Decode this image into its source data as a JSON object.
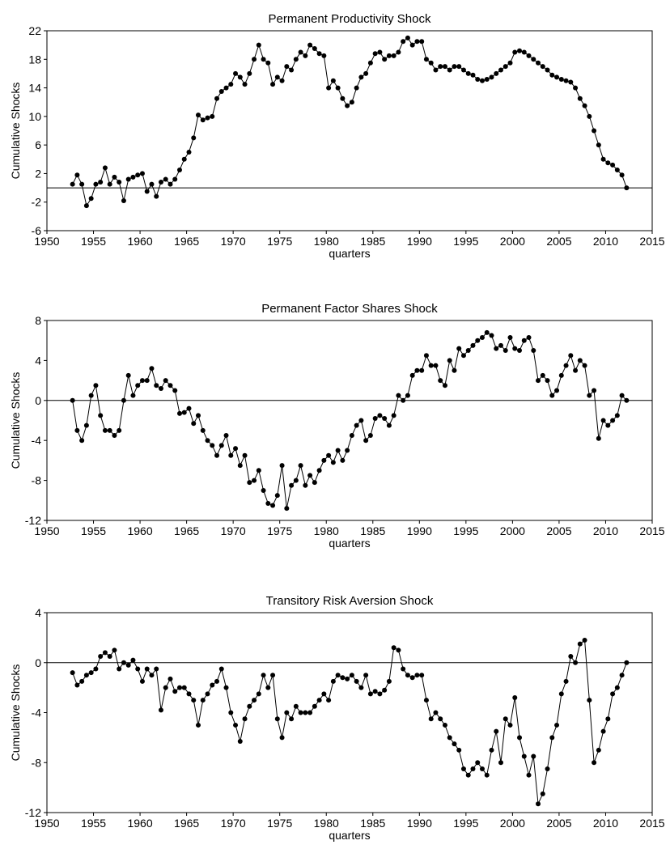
{
  "chart_data": [
    {
      "type": "line",
      "title": "Permanent Productivity Shock",
      "xlabel": "quarters",
      "ylabel": "Cumulative Shocks",
      "xlim": [
        1950,
        2015
      ],
      "xticks": [
        1950,
        1955,
        1960,
        1965,
        1970,
        1975,
        1980,
        1985,
        1990,
        1995,
        2000,
        2005,
        2010,
        2015
      ],
      "ylim": [
        -6,
        22
      ],
      "yticks": [
        -6,
        -2,
        2,
        6,
        10,
        14,
        18,
        22
      ],
      "hline": 0,
      "color": "#000000",
      "markers": true,
      "grid": false,
      "x": [
        1952.75,
        1953.25,
        1953.75,
        1954.25,
        1954.75,
        1955.25,
        1955.75,
        1956.25,
        1956.75,
        1957.25,
        1957.75,
        1958.25,
        1958.75,
        1959.25,
        1959.75,
        1960.25,
        1960.75,
        1961.25,
        1961.75,
        1962.25,
        1962.75,
        1963.25,
        1963.75,
        1964.25,
        1964.75,
        1965.25,
        1965.75,
        1966.25,
        1966.75,
        1967.25,
        1967.75,
        1968.25,
        1968.75,
        1969.25,
        1969.75,
        1970.25,
        1970.75,
        1971.25,
        1971.75,
        1972.25,
        1972.75,
        1973.25,
        1973.75,
        1974.25,
        1974.75,
        1975.25,
        1975.75,
        1976.25,
        1976.75,
        1977.25,
        1977.75,
        1978.25,
        1978.75,
        1979.25,
        1979.75,
        1980.25,
        1980.75,
        1981.25,
        1981.75,
        1982.25,
        1982.75,
        1983.25,
        1983.75,
        1984.25,
        1984.75,
        1985.25,
        1985.75,
        1986.25,
        1986.75,
        1987.25,
        1987.75,
        1988.25,
        1988.75,
        1989.25,
        1989.75,
        1990.25,
        1990.75,
        1991.25,
        1991.75,
        1992.25,
        1992.75,
        1993.25,
        1993.75,
        1994.25,
        1994.75,
        1995.25,
        1995.75,
        1996.25,
        1996.75,
        1997.25,
        1997.75,
        1998.25,
        1998.75,
        1999.25,
        1999.75,
        2000.25,
        2000.75,
        2001.25,
        2001.75,
        2002.25,
        2002.75,
        2003.25,
        2003.75,
        2004.25,
        2004.75,
        2005.25,
        2005.75,
        2006.25,
        2006.75,
        2007.25,
        2007.75,
        2008.25,
        2008.75,
        2009.25,
        2009.75,
        2010.25,
        2010.75,
        2011.25,
        2011.75,
        2012.25
      ],
      "values": [
        0.5,
        1.8,
        0.5,
        -2.5,
        -1.5,
        0.5,
        0.8,
        2.8,
        0.5,
        1.5,
        0.8,
        -1.8,
        1.2,
        1.5,
        1.8,
        2.0,
        -0.5,
        0.5,
        -1.2,
        0.8,
        1.2,
        0.5,
        1.2,
        2.5,
        4.0,
        5.0,
        7.0,
        10.2,
        9.5,
        9.8,
        10.0,
        12.5,
        13.5,
        14.0,
        14.5,
        16.0,
        15.5,
        14.5,
        16.0,
        18.0,
        20.0,
        18.0,
        17.5,
        14.5,
        15.5,
        15.0,
        17.0,
        16.5,
        18.0,
        19.0,
        18.5,
        20.0,
        19.5,
        18.8,
        18.5,
        14.0,
        15.0,
        14.0,
        12.5,
        11.5,
        12.0,
        14.0,
        15.5,
        16.0,
        17.5,
        18.8,
        19.0,
        18.0,
        18.5,
        18.5,
        19.0,
        20.5,
        21.0,
        20.0,
        20.5,
        20.5,
        18.0,
        17.5,
        16.5,
        17.0,
        17.0,
        16.5,
        17.0,
        17.0,
        16.5,
        16.0,
        15.8,
        15.2,
        15.0,
        15.2,
        15.5,
        16.0,
        16.5,
        17.0,
        17.5,
        19.0,
        19.2,
        19.0,
        18.5,
        18.0,
        17.5,
        17.0,
        16.5,
        15.8,
        15.5,
        15.2,
        15.0,
        14.8,
        14.0,
        12.5,
        11.5,
        10.0,
        8.0,
        6.0,
        4.0,
        3.5,
        3.2,
        2.5,
        1.8,
        0.0
      ]
    },
    {
      "type": "line",
      "title": "Permanent Factor Shares Shock",
      "xlabel": "quarters",
      "ylabel": "Cumulative Shocks",
      "xlim": [
        1950,
        2015
      ],
      "xticks": [
        1950,
        1955,
        1960,
        1965,
        1970,
        1975,
        1980,
        1985,
        1990,
        1995,
        2000,
        2005,
        2010,
        2015
      ],
      "ylim": [
        -12,
        8
      ],
      "yticks": [
        -12,
        -8,
        -4,
        0,
        4,
        8
      ],
      "hline": 0,
      "color": "#000000",
      "markers": true,
      "grid": false,
      "x": [
        1952.75,
        1953.25,
        1953.75,
        1954.25,
        1954.75,
        1955.25,
        1955.75,
        1956.25,
        1956.75,
        1957.25,
        1957.75,
        1958.25,
        1958.75,
        1959.25,
        1959.75,
        1960.25,
        1960.75,
        1961.25,
        1961.75,
        1962.25,
        1962.75,
        1963.25,
        1963.75,
        1964.25,
        1964.75,
        1965.25,
        1965.75,
        1966.25,
        1966.75,
        1967.25,
        1967.75,
        1968.25,
        1968.75,
        1969.25,
        1969.75,
        1970.25,
        1970.75,
        1971.25,
        1971.75,
        1972.25,
        1972.75,
        1973.25,
        1973.75,
        1974.25,
        1974.75,
        1975.25,
        1975.75,
        1976.25,
        1976.75,
        1977.25,
        1977.75,
        1978.25,
        1978.75,
        1979.25,
        1979.75,
        1980.25,
        1980.75,
        1981.25,
        1981.75,
        1982.25,
        1982.75,
        1983.25,
        1983.75,
        1984.25,
        1984.75,
        1985.25,
        1985.75,
        1986.25,
        1986.75,
        1987.25,
        1987.75,
        1988.25,
        1988.75,
        1989.25,
        1989.75,
        1990.25,
        1990.75,
        1991.25,
        1991.75,
        1992.25,
        1992.75,
        1993.25,
        1993.75,
        1994.25,
        1994.75,
        1995.25,
        1995.75,
        1996.25,
        1996.75,
        1997.25,
        1997.75,
        1998.25,
        1998.75,
        1999.25,
        1999.75,
        2000.25,
        2000.75,
        2001.25,
        2001.75,
        2002.25,
        2002.75,
        2003.25,
        2003.75,
        2004.25,
        2004.75,
        2005.25,
        2005.75,
        2006.25,
        2006.75,
        2007.25,
        2007.75,
        2008.25,
        2008.75,
        2009.25,
        2009.75,
        2010.25,
        2010.75,
        2011.25,
        2011.75,
        2012.25
      ],
      "values": [
        0,
        -3.0,
        -4.0,
        -2.5,
        0.5,
        1.5,
        -1.5,
        -3.0,
        -3.0,
        -3.5,
        -3.0,
        0,
        2.5,
        0.5,
        1.5,
        2.0,
        2.0,
        3.2,
        1.5,
        1.2,
        2.0,
        1.5,
        1.0,
        -1.3,
        -1.2,
        -0.8,
        -2.3,
        -1.5,
        -3.0,
        -4.0,
        -4.5,
        -5.5,
        -4.5,
        -3.5,
        -5.5,
        -4.8,
        -6.5,
        -5.5,
        -8.2,
        -8.0,
        -7.0,
        -9.0,
        -10.3,
        -10.5,
        -9.5,
        -6.5,
        -10.8,
        -8.5,
        -8.0,
        -6.5,
        -8.5,
        -7.5,
        -8.2,
        -7.0,
        -6.0,
        -5.5,
        -6.2,
        -5.0,
        -6.0,
        -5.0,
        -3.5,
        -2.5,
        -2.0,
        -4.0,
        -3.5,
        -1.8,
        -1.5,
        -1.8,
        -2.5,
        -1.5,
        0.5,
        0,
        0.5,
        2.5,
        3.0,
        3.0,
        4.5,
        3.5,
        3.5,
        2.0,
        1.5,
        4.0,
        3.0,
        5.2,
        4.5,
        5.0,
        5.5,
        6.0,
        6.3,
        6.8,
        6.5,
        5.2,
        5.5,
        5.0,
        6.3,
        5.2,
        5.0,
        6.0,
        6.3,
        5.0,
        2.0,
        2.5,
        2.0,
        0.5,
        1.0,
        2.5,
        3.5,
        4.5,
        3.0,
        4.0,
        3.5,
        0.5,
        1.0,
        -3.8,
        -2.0,
        -2.5,
        -2.0,
        -1.5,
        0.5,
        0.0
      ]
    },
    {
      "type": "line",
      "title": "Transitory Risk Aversion Shock",
      "xlabel": "quarters",
      "ylabel": "Cumulative Shocks",
      "xlim": [
        1950,
        2015
      ],
      "xticks": [
        1950,
        1955,
        1960,
        1965,
        1970,
        1975,
        1980,
        1985,
        1990,
        1995,
        2000,
        2005,
        2010,
        2015
      ],
      "ylim": [
        -12,
        4
      ],
      "yticks": [
        -12,
        -8,
        -4,
        0,
        4
      ],
      "hline": 0,
      "color": "#000000",
      "markers": true,
      "grid": false,
      "x": [
        1952.75,
        1953.25,
        1953.75,
        1954.25,
        1954.75,
        1955.25,
        1955.75,
        1956.25,
        1956.75,
        1957.25,
        1957.75,
        1958.25,
        1958.75,
        1959.25,
        1959.75,
        1960.25,
        1960.75,
        1961.25,
        1961.75,
        1962.25,
        1962.75,
        1963.25,
        1963.75,
        1964.25,
        1964.75,
        1965.25,
        1965.75,
        1966.25,
        1966.75,
        1967.25,
        1967.75,
        1968.25,
        1968.75,
        1969.25,
        1969.75,
        1970.25,
        1970.75,
        1971.25,
        1971.75,
        1972.25,
        1972.75,
        1973.25,
        1973.75,
        1974.25,
        1974.75,
        1975.25,
        1975.75,
        1976.25,
        1976.75,
        1977.25,
        1977.75,
        1978.25,
        1978.75,
        1979.25,
        1979.75,
        1980.25,
        1980.75,
        1981.25,
        1981.75,
        1982.25,
        1982.75,
        1983.25,
        1983.75,
        1984.25,
        1984.75,
        1985.25,
        1985.75,
        1986.25,
        1986.75,
        1987.25,
        1987.75,
        1988.25,
        1988.75,
        1989.25,
        1989.75,
        1990.25,
        1990.75,
        1991.25,
        1991.75,
        1992.25,
        1992.75,
        1993.25,
        1993.75,
        1994.25,
        1994.75,
        1995.25,
        1995.75,
        1996.25,
        1996.75,
        1997.25,
        1997.75,
        1998.25,
        1998.75,
        1999.25,
        1999.75,
        2000.25,
        2000.75,
        2001.25,
        2001.75,
        2002.25,
        2002.75,
        2003.25,
        2003.75,
        2004.25,
        2004.75,
        2005.25,
        2005.75,
        2006.25,
        2006.75,
        2007.25,
        2007.75,
        2008.25,
        2008.75,
        2009.25,
        2009.75,
        2010.25,
        2010.75,
        2011.25,
        2011.75,
        2012.25
      ],
      "values": [
        -0.8,
        -1.8,
        -1.5,
        -1.0,
        -0.8,
        -0.5,
        0.5,
        0.8,
        0.5,
        1.0,
        -0.5,
        0,
        -0.2,
        0.2,
        -0.5,
        -1.5,
        -0.5,
        -1.0,
        -0.5,
        -3.8,
        -2.0,
        -1.3,
        -2.3,
        -2.0,
        -2.0,
        -2.5,
        -3.0,
        -5.0,
        -3.0,
        -2.5,
        -1.8,
        -1.5,
        -0.5,
        -2.0,
        -4.0,
        -5.0,
        -6.3,
        -4.5,
        -3.5,
        -3.0,
        -2.5,
        -1.0,
        -2.0,
        -1.0,
        -4.5,
        -6.0,
        -4.0,
        -4.5,
        -3.5,
        -4.0,
        -4.0,
        -4.0,
        -3.5,
        -3.0,
        -2.5,
        -3.0,
        -1.5,
        -1.0,
        -1.2,
        -1.3,
        -1.0,
        -1.5,
        -2.0,
        -1.0,
        -2.5,
        -2.3,
        -2.5,
        -2.2,
        -1.5,
        1.2,
        1.0,
        -0.5,
        -1.0,
        -1.2,
        -1.0,
        -1.0,
        -3.0,
        -4.5,
        -4.0,
        -4.5,
        -5.0,
        -6.0,
        -6.5,
        -7.0,
        -8.5,
        -9.0,
        -8.5,
        -8.0,
        -8.5,
        -9.0,
        -7.0,
        -5.5,
        -8.0,
        -4.5,
        -5.0,
        -2.8,
        -6.0,
        -7.5,
        -9.0,
        -7.5,
        -11.3,
        -10.5,
        -8.5,
        -6.0,
        -5.0,
        -2.5,
        -1.5,
        0.5,
        0.0,
        1.5,
        1.8,
        -3.0,
        -8.0,
        -7.0,
        -5.5,
        -4.5,
        -2.5,
        -2.0,
        -1.0,
        0.0
      ]
    }
  ]
}
